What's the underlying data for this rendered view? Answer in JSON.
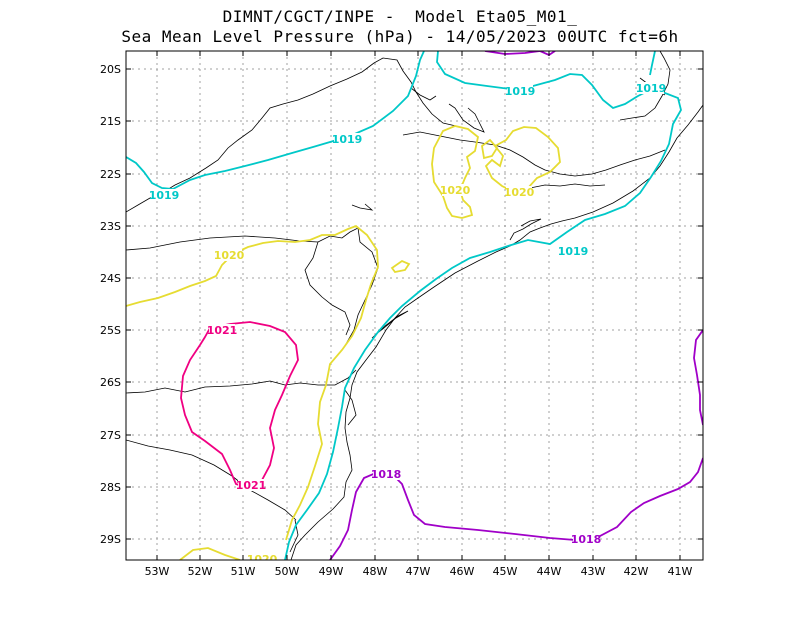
{
  "title_line1": "DIMNT/CGCT/INPE -  Model Eta05_M01_",
  "title_line2": "Sea Mean Level Pressure (hPa) - 14/05/2023 00UTC fct=6h",
  "lon_ticks": [
    "53W",
    "52W",
    "51W",
    "50W",
    "49W",
    "48W",
    "47W",
    "46W",
    "45W",
    "44W",
    "43W",
    "42W",
    "41W"
  ],
  "lat_ticks": [
    "20S",
    "21S",
    "22S",
    "23S",
    "24S",
    "25S",
    "26S",
    "27S",
    "28S",
    "29S"
  ],
  "colors": {
    "c1018": "#a000c8",
    "c1019": "#00c8c8",
    "c1020": "#e6dc32",
    "c1021": "#f00082",
    "coast": "#000000",
    "grid": "#a0a0a0"
  },
  "contour_labels": [
    {
      "text": "1019",
      "color": "c1019"
    },
    {
      "text": "1019",
      "color": "c1019"
    },
    {
      "text": "1019",
      "color": "c1019"
    },
    {
      "text": "1019",
      "color": "c1019"
    },
    {
      "text": "1019",
      "color": "c1019"
    },
    {
      "text": "1020",
      "color": "c1020"
    },
    {
      "text": "1020",
      "color": "c1020"
    },
    {
      "text": "1020",
      "color": "c1020"
    },
    {
      "text": "1020",
      "color": "c1020"
    },
    {
      "text": "1021",
      "color": "c1021"
    },
    {
      "text": "1021",
      "color": "c1021"
    },
    {
      "text": "1018",
      "color": "c1018"
    },
    {
      "text": "1018",
      "color": "c1018"
    }
  ]
}
